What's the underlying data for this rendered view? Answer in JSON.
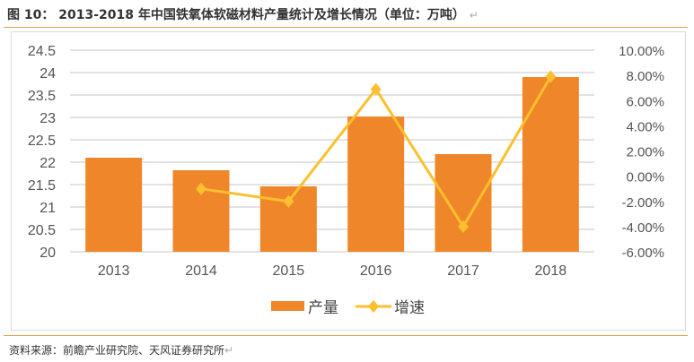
{
  "title": "图 10：  2013-2018 年中国铁氧体软磁材料产量统计及增长情况（单位：万吨）",
  "source": "资料来源：前瞻产业研究院、天风证券研究所",
  "chart_data": {
    "type": "bar+line",
    "categories": [
      "2013",
      "2014",
      "2015",
      "2016",
      "2017",
      "2018"
    ],
    "series": [
      {
        "name": "产量",
        "type": "bar",
        "axis": "left",
        "color": "#f0862a",
        "values": [
          22.1,
          21.82,
          21.46,
          23.02,
          22.18,
          23.9
        ]
      },
      {
        "name": "增速",
        "type": "line",
        "axis": "right",
        "color": "#fbc02d",
        "marker": "diamond",
        "values": [
          null,
          -1.0,
          -2.0,
          6.9,
          -4.0,
          7.9
        ]
      }
    ],
    "ylim_left": [
      20,
      24.5
    ],
    "yticks_left": [
      "20",
      "20.5",
      "21",
      "21.5",
      "22",
      "22.5",
      "23",
      "23.5",
      "24",
      "24.5"
    ],
    "ylim_right": [
      -6,
      10
    ],
    "yticks_right": [
      "-6.00%",
      "-4.00%",
      "-2.00%",
      "0.00%",
      "2.00%",
      "4.00%",
      "6.00%",
      "8.00%",
      "10.00%"
    ],
    "grid": true,
    "legend": "bottom"
  }
}
